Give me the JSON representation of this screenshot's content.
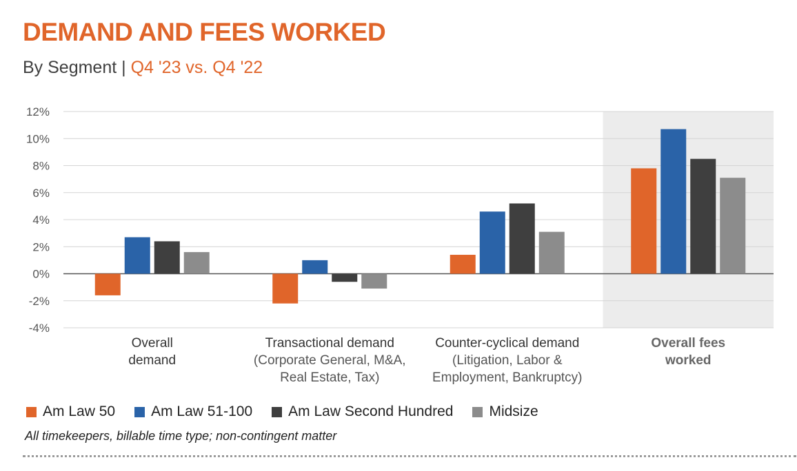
{
  "header": {
    "title": "DEMAND AND FEES WORKED",
    "subtitle_prefix": "By Segment",
    "subtitle_separator": "|",
    "subtitle_period": "Q4 '23 vs. Q4 '22"
  },
  "chart_data": {
    "type": "bar",
    "title": "DEMAND AND FEES WORKED",
    "categories": [
      {
        "label": "Overall",
        "label2": "demand",
        "sub": [],
        "highlight": false
      },
      {
        "label": "Transactional demand",
        "label2": "",
        "sub": [
          "(Corporate General, M&A,",
          "Real Estate, Tax)"
        ],
        "highlight": false
      },
      {
        "label": "Counter-cyclical demand",
        "label2": "",
        "sub": [
          "(Litigation, Labor &",
          "Employment, Bankruptcy)"
        ],
        "highlight": false
      },
      {
        "label": "Overall fees",
        "label2": "worked",
        "sub": [],
        "highlight": true
      }
    ],
    "series": [
      {
        "name": "Am Law 50",
        "color": "#e0652a",
        "values": [
          -1.6,
          -2.2,
          1.4,
          7.8
        ]
      },
      {
        "name": "Am Law 51-100",
        "color": "#2a63a8",
        "values": [
          2.7,
          1.0,
          4.6,
          10.7
        ]
      },
      {
        "name": "Am Law Second Hundred",
        "color": "#3f3f3f",
        "values": [
          2.4,
          -0.6,
          5.2,
          8.5
        ]
      },
      {
        "name": "Midsize",
        "color": "#8c8c8c",
        "values": [
          1.6,
          -1.1,
          3.1,
          7.1
        ]
      }
    ],
    "ylim": [
      -4,
      12
    ],
    "yticks": [
      12,
      10,
      8,
      6,
      4,
      2,
      0,
      -2,
      -4
    ],
    "ytick_labels": [
      "12%",
      "10%",
      "8%",
      "6%",
      "4%",
      "2%",
      "0%",
      "-2%",
      "-4%"
    ],
    "grid": true,
    "legend_position": "bottom-left",
    "highlight_color": "#ececec"
  },
  "footnote": "All timekeepers, billable time type; non-contingent matter"
}
